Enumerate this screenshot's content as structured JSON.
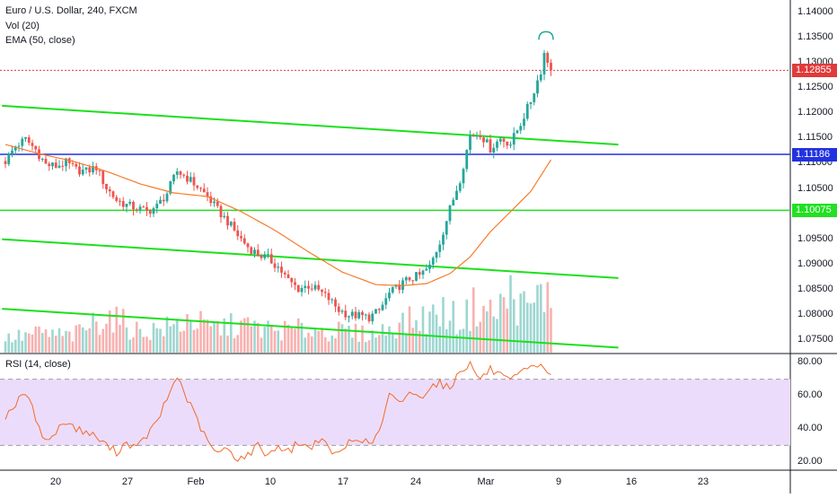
{
  "legend": {
    "title": "Euro / U.S. Dollar, 240, FXCM",
    "vol": "Vol (20)",
    "ema": "EMA (50, close)",
    "rsi": "RSI (14, close)"
  },
  "colors": {
    "up": "#26a69a",
    "down": "#ef5350",
    "ema": "#f57c2b",
    "channel": "#1be01b",
    "support": "#22e022",
    "blueline": "#2232e0",
    "rsi": "#f26b2c",
    "rsiband": "#ecdcfb",
    "priceline": "#e13a3a"
  },
  "chart_data": [
    {
      "type": "candlestick",
      "title": "Euro / U.S. Dollar, 240, FXCM",
      "x_ticks": [
        "20",
        "27",
        "Feb",
        "10",
        "17",
        "24",
        "Mar",
        "9",
        "16",
        "23"
      ],
      "y_ticks": [
        "1.14000",
        "1.13500",
        "1.13000",
        "1.12500",
        "1.12000",
        "1.11500",
        "1.11000",
        "1.10500",
        "1.10000",
        "1.09500",
        "1.09000",
        "1.08500",
        "1.08000",
        "1.07500"
      ],
      "ylim": [
        1.0725,
        1.1425
      ],
      "current_price": "1.12855",
      "current_price_value": 1.12855,
      "horizontal_line": "1.11186",
      "horizontal_line_value": 1.11186,
      "support_line": "1.10075",
      "support_line_value": 1.10075,
      "close_path": [
        [
          0,
          1.1105
        ],
        [
          3,
          1.1135
        ],
        [
          6,
          1.1148
        ],
        [
          9,
          1.1128
        ],
        [
          12,
          1.1098
        ],
        [
          15,
          1.1095
        ],
        [
          18,
          1.1102
        ],
        [
          21,
          1.1088
        ],
        [
          24,
          1.1085
        ],
        [
          27,
          1.1093
        ],
        [
          30,
          1.1052
        ],
        [
          33,
          1.1028
        ],
        [
          36,
          1.1018
        ],
        [
          39,
          1.1012
        ],
        [
          42,
          1.1005
        ],
        [
          45,
          1.1015
        ],
        [
          48,
          1.1042
        ],
        [
          51,
          1.1085
        ],
        [
          54,
          1.1072
        ],
        [
          57,
          1.1055
        ],
        [
          60,
          1.1035
        ],
        [
          63,
          1.1008
        ],
        [
          66,
          1.0985
        ],
        [
          69,
          1.0958
        ],
        [
          72,
          1.0935
        ],
        [
          75,
          1.092
        ],
        [
          78,
          1.0912
        ],
        [
          81,
          1.0895
        ],
        [
          84,
          1.0868
        ],
        [
          87,
          1.0852
        ],
        [
          90,
          1.0858
        ],
        [
          93,
          1.0848
        ],
        [
          96,
          1.0832
        ],
        [
          99,
          1.081
        ],
        [
          102,
          1.08
        ],
        [
          105,
          1.0798
        ],
        [
          108,
          1.0795
        ],
        [
          111,
          1.0808
        ],
        [
          114,
          1.0842
        ],
        [
          117,
          1.0858
        ],
        [
          120,
          1.0872
        ],
        [
          123,
          1.0878
        ],
        [
          126,
          1.0895
        ],
        [
          129,
          1.0945
        ],
        [
          132,
          1.101
        ],
        [
          135,
          1.107
        ],
        [
          138,
          1.1155
        ],
        [
          141,
          1.116
        ],
        [
          144,
          1.113
        ],
        [
          147,
          1.115
        ],
        [
          150,
          1.114
        ],
        [
          153,
          1.118
        ],
        [
          156,
          1.1225
        ],
        [
          159,
          1.1285
        ],
        [
          160,
          1.132
        ],
        [
          162,
          1.12855
        ]
      ],
      "ema_path": [
        [
          0,
          1.1138
        ],
        [
          10,
          1.112
        ],
        [
          20,
          1.1105
        ],
        [
          30,
          1.1085
        ],
        [
          40,
          1.106
        ],
        [
          50,
          1.1042
        ],
        [
          60,
          1.1035
        ],
        [
          70,
          1.1005
        ],
        [
          80,
          1.0968
        ],
        [
          90,
          1.0925
        ],
        [
          100,
          1.0885
        ],
        [
          110,
          1.086
        ],
        [
          118,
          1.0858
        ],
        [
          125,
          1.0862
        ],
        [
          132,
          1.0882
        ],
        [
          138,
          1.0915
        ],
        [
          144,
          1.0965
        ],
        [
          150,
          1.1005
        ],
        [
          156,
          1.1045
        ],
        [
          162,
          1.1108
        ]
      ],
      "channel_upper": [
        [
          -1,
          1.1215
        ],
        [
          182,
          1.1138
        ]
      ],
      "channel_middle": [
        [
          -1,
          1.095
        ],
        [
          182,
          1.0873
        ]
      ],
      "channel_lower": [
        [
          -1,
          1.0812
        ],
        [
          182,
          1.0735
        ]
      ],
      "volume": [
        [
          0,
          20
        ],
        [
          10,
          28
        ],
        [
          20,
          24
        ],
        [
          30,
          55
        ],
        [
          40,
          30
        ],
        [
          50,
          38
        ],
        [
          55,
          50
        ],
        [
          60,
          35
        ],
        [
          70,
          40
        ],
        [
          80,
          32
        ],
        [
          90,
          34
        ],
        [
          100,
          30
        ],
        [
          110,
          26
        ],
        [
          115,
          40
        ],
        [
          120,
          45
        ],
        [
          125,
          50
        ],
        [
          130,
          60
        ],
        [
          135,
          45
        ],
        [
          140,
          70
        ],
        [
          145,
          55
        ],
        [
          150,
          85
        ],
        [
          155,
          60
        ],
        [
          160,
          90
        ],
        [
          162,
          65
        ]
      ]
    },
    {
      "type": "line",
      "title": "RSI (14, close)",
      "y_ticks": [
        "80.00",
        "60.00",
        "40.00",
        "20.00"
      ],
      "ylim": [
        15,
        85
      ],
      "bands": [
        30,
        70
      ],
      "values": [
        [
          0,
          48
        ],
        [
          3,
          55
        ],
        [
          6,
          62
        ],
        [
          9,
          47
        ],
        [
          12,
          32
        ],
        [
          15,
          38
        ],
        [
          18,
          45
        ],
        [
          21,
          40
        ],
        [
          24,
          38
        ],
        [
          27,
          35
        ],
        [
          30,
          30
        ],
        [
          33,
          26
        ],
        [
          36,
          32
        ],
        [
          39,
          28
        ],
        [
          42,
          36
        ],
        [
          45,
          44
        ],
        [
          48,
          58
        ],
        [
          51,
          72
        ],
        [
          54,
          58
        ],
        [
          57,
          45
        ],
        [
          60,
          32
        ],
        [
          63,
          25
        ],
        [
          66,
          28
        ],
        [
          69,
          22
        ],
        [
          72,
          24
        ],
        [
          75,
          30
        ],
        [
          78,
          24
        ],
        [
          81,
          30
        ],
        [
          84,
          26
        ],
        [
          87,
          32
        ],
        [
          90,
          28
        ],
        [
          93,
          34
        ],
        [
          96,
          28
        ],
        [
          99,
          24
        ],
        [
          102,
          32
        ],
        [
          105,
          35
        ],
        [
          108,
          30
        ],
        [
          111,
          38
        ],
        [
          114,
          60
        ],
        [
          117,
          55
        ],
        [
          120,
          63
        ],
        [
          123,
          58
        ],
        [
          126,
          66
        ],
        [
          129,
          68
        ],
        [
          132,
          64
        ],
        [
          135,
          76
        ],
        [
          138,
          79
        ],
        [
          141,
          70
        ],
        [
          144,
          76
        ],
        [
          147,
          72
        ],
        [
          150,
          68
        ],
        [
          153,
          74
        ],
        [
          156,
          76
        ],
        [
          159,
          80
        ],
        [
          162,
          71
        ]
      ]
    }
  ]
}
